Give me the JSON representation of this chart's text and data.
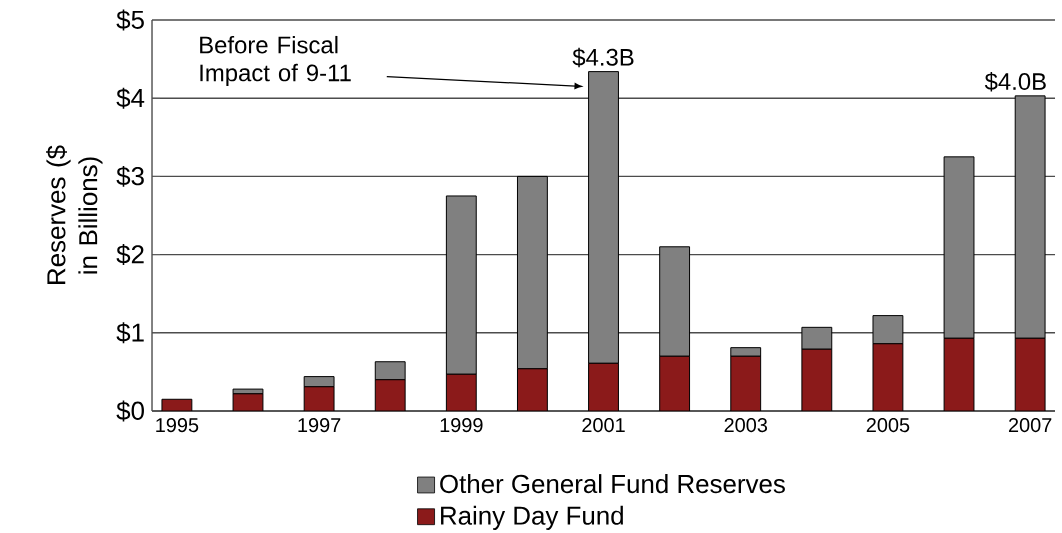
{
  "chart_data": {
    "type": "bar",
    "stacked": true,
    "ylabel": "Reserves ($ in Billions)",
    "categories": [
      "1995",
      null,
      "1997",
      null,
      "1999",
      null,
      "2001",
      null,
      "2003",
      null,
      "2005",
      null,
      "2007"
    ],
    "series": [
      {
        "name": "Rainy Day Fund",
        "color": "#8b1a1a",
        "values": [
          0.15,
          0.22,
          0.31,
          0.4,
          0.47,
          0.54,
          0.61,
          0.7,
          0.7,
          0.79,
          0.86,
          0.93,
          0.93
        ]
      },
      {
        "name": "Other General Fund Reserves",
        "color": "#808080",
        "values": [
          0,
          0.06,
          0.13,
          0.23,
          2.28,
          2.46,
          3.73,
          1.4,
          0.11,
          0.28,
          0.36,
          2.32,
          3.1
        ]
      }
    ],
    "totals": [
      null,
      null,
      null,
      null,
      null,
      null,
      "$4.3B",
      null,
      null,
      null,
      null,
      null,
      "$4.0B"
    ],
    "annotations": [
      "Before Fiscal Impact of 9-11"
    ],
    "ylim": [
      0,
      5
    ],
    "yticks": [
      {
        "value": 0,
        "label": "$0"
      },
      {
        "value": 1,
        "label": "$1"
      },
      {
        "value": 2,
        "label": "$2"
      },
      {
        "value": 3,
        "label": "$3"
      },
      {
        "value": 4,
        "label": "$4"
      },
      {
        "value": 5,
        "label": "$5"
      }
    ],
    "grid": "y",
    "legend": "bottom"
  }
}
